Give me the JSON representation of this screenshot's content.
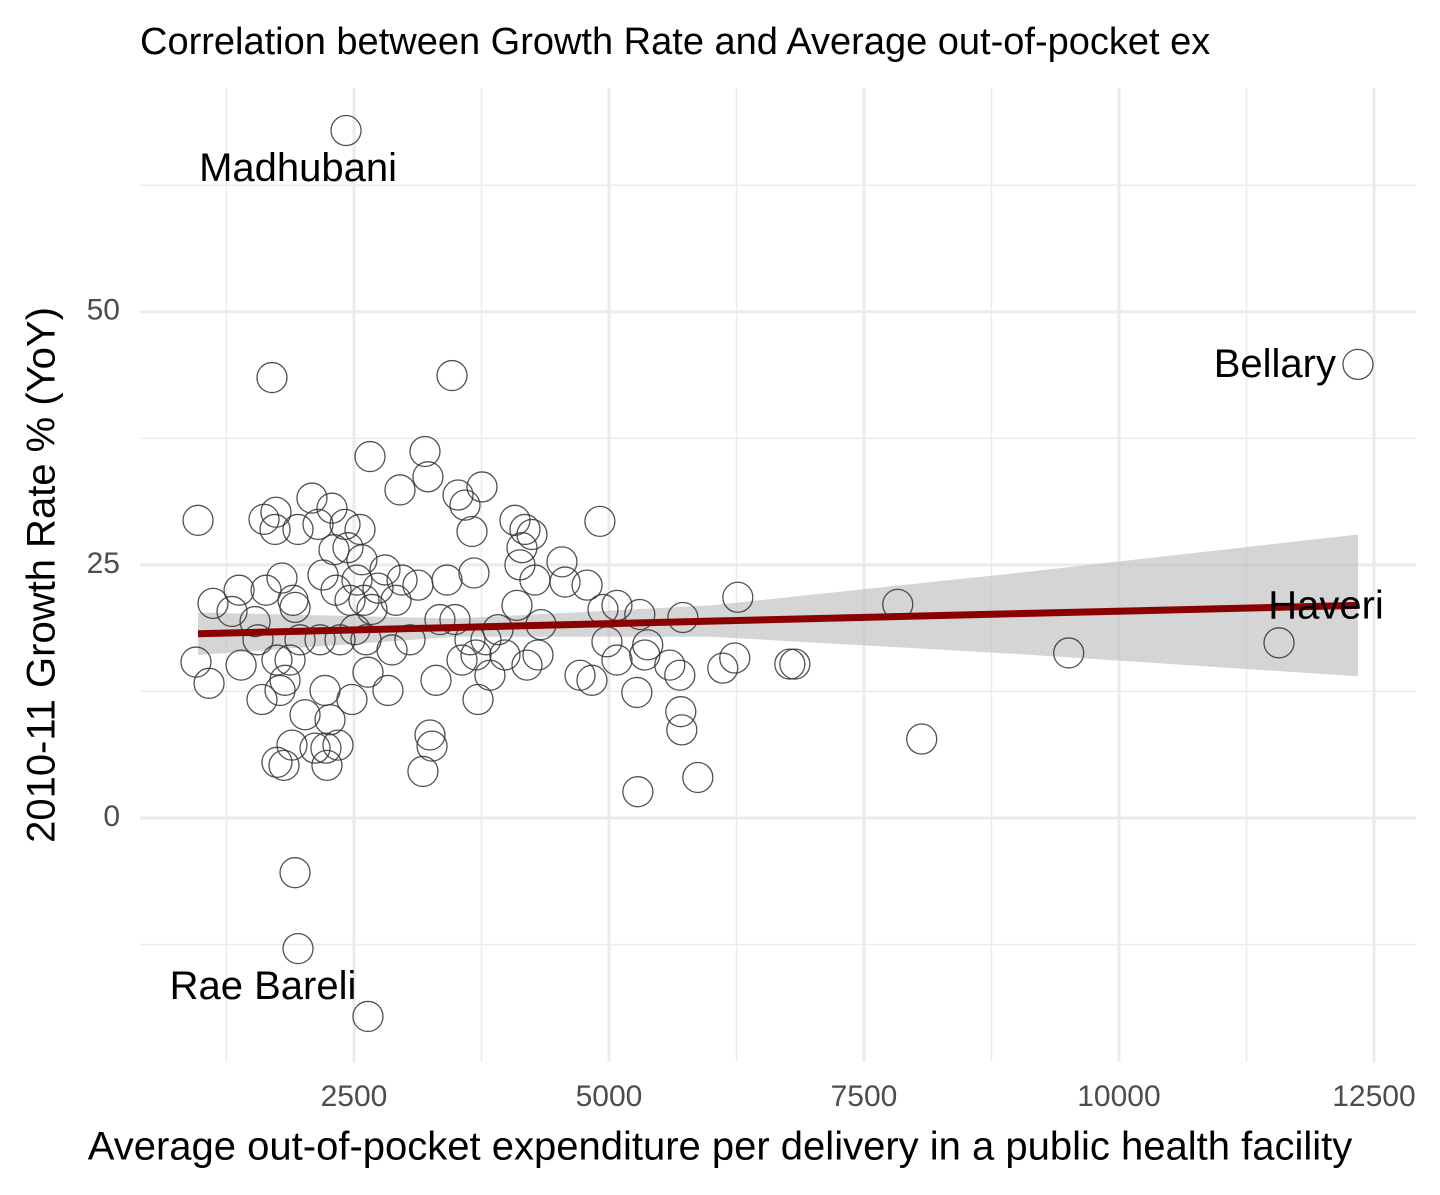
{
  "chart_data": {
    "type": "scatter",
    "title": "Correlation between Growth Rate and Average out-of-pocket ex",
    "x_label": "Average out-of-pocket expenditure per delivery in a public health facility",
    "y_label": "2010-11 Growth Rate % (YoY)",
    "xlim": [
      402,
      12912
    ],
    "ylim": [
      -24.1,
      72.1
    ],
    "xticks": [
      2500,
      5000,
      7500,
      10000,
      12500
    ],
    "yticks": [
      0,
      25,
      50
    ],
    "xminor": [
      1250,
      3750,
      6250,
      8750,
      11250
    ],
    "yminor": [
      -12.5,
      12.5,
      37.5,
      62.5
    ],
    "grid": true,
    "point_color": "#333333",
    "trend_color": "#8b0000",
    "band_color": "#bfbfbf",
    "x": [
      2422,
      12343,
      11569,
      2637,
      971,
      951,
      1079,
      1118,
      1304,
      1373,
      1393,
      1530,
      1559,
      1598,
      1618,
      1638,
      1696,
      1735,
      1726,
      1745,
      1775,
      1794,
      1824,
      1873,
      1902,
      1922,
      1951,
      1971,
      1745,
      1814,
      1892,
      1922,
      1951,
      2020,
      2088,
      2118,
      2147,
      2167,
      2196,
      2216,
      2225,
      2235,
      2265,
      2284,
      2304,
      2324,
      2343,
      2363,
      2412,
      2441,
      2461,
      2480,
      2510,
      2529,
      2559,
      2578,
      2598,
      2618,
      2637,
      2657,
      2676,
      2735,
      2804,
      2833,
      2873,
      2912,
      2951,
      2971,
      3049,
      3127,
      3176,
      3196,
      3225,
      3245,
      3265,
      3304,
      3343,
      3412,
      3461,
      3490,
      3520,
      3559,
      3588,
      3637,
      3657,
      3676,
      3696,
      3716,
      3755,
      3794,
      3833,
      3912,
      3980,
      4078,
      4098,
      4127,
      4147,
      4176,
      4196,
      4245,
      4274,
      4304,
      4333,
      4539,
      4569,
      4716,
      4785,
      4833,
      4911,
      4941,
      4980,
      5078,
      5078,
      5273,
      5283,
      5302,
      5351,
      5380,
      5596,
      5694,
      5704,
      5714,
      5724,
      5871,
      6116,
      6233,
      6263,
      6773,
      6822,
      7831,
      8066,
      9507
    ],
    "y": [
      67.9,
      44.8,
      17.3,
      -19.6,
      29.4,
      15.4,
      13.3,
      21.2,
      20.4,
      22.5,
      15.1,
      19.4,
      17.6,
      11.7,
      29.5,
      22.5,
      43.5,
      30.2,
      28.5,
      15.6,
      12.6,
      23.7,
      13.6,
      15.6,
      21.5,
      20.8,
      28.5,
      17.6,
      5.5,
      5.2,
      7.2,
      -5.4,
      -12.9,
      10.2,
      31.6,
      6.9,
      29.0,
      17.6,
      24.0,
      12.6,
      6.9,
      5.2,
      9.7,
      30.6,
      26.5,
      22.5,
      7.2,
      17.6,
      29.0,
      26.7,
      21.5,
      11.7,
      18.6,
      23.5,
      28.5,
      25.5,
      21.5,
      17.6,
      14.4,
      35.7,
      20.6,
      22.7,
      24.5,
      12.6,
      16.6,
      21.5,
      32.4,
      23.5,
      17.6,
      23.0,
      4.6,
      36.2,
      33.7,
      8.2,
      7.1,
      13.6,
      19.6,
      23.5,
      43.7,
      19.6,
      31.9,
      15.6,
      30.9,
      17.6,
      28.3,
      24.2,
      16.1,
      11.7,
      32.7,
      17.6,
      14.1,
      18.6,
      16.1,
      29.4,
      21.0,
      25.0,
      26.7,
      28.5,
      15.1,
      28.0,
      23.5,
      16.1,
      19.1,
      25.3,
      23.3,
      14.1,
      23.0,
      13.6,
      29.3,
      20.6,
      17.4,
      21.0,
      15.6,
      12.4,
      2.6,
      20.1,
      16.1,
      17.1,
      15.1,
      14.1,
      10.5,
      8.7,
      19.8,
      4.0,
      14.8,
      15.8,
      21.8,
      15.2,
      15.2,
      21.1,
      7.8,
      16.3
    ],
    "trend": {
      "x": [
        971,
        3500,
        6000,
        9000,
        12343
      ],
      "y": [
        18.2,
        18.82,
        19.44,
        20.18,
        21.0
      ],
      "lower": [
        16.1,
        17.9,
        17.9,
        16.2,
        14.0
      ],
      "upper": [
        20.3,
        19.7,
        21.0,
        24.2,
        28.0
      ]
    },
    "annotations": [
      {
        "text": "Madhubani",
        "x": 2422,
        "y": 67.9
      },
      {
        "text": "Bellary",
        "x": 12343,
        "y": 44.8
      },
      {
        "text": "Haveri",
        "x": 11569,
        "y": 17.3
      },
      {
        "text": "Rae Bareli",
        "x": 2637,
        "y": -19.6
      }
    ]
  }
}
